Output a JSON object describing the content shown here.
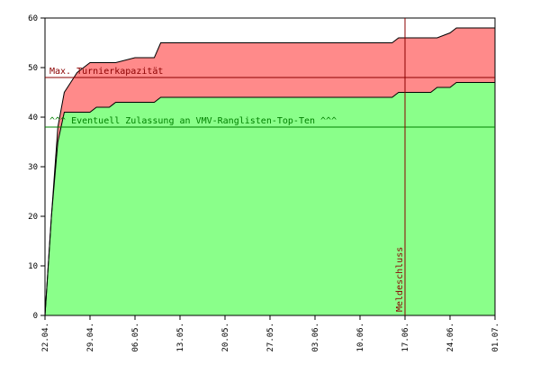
{
  "chart_data": {
    "type": "area",
    "title": "",
    "xlabel": "",
    "ylabel": "",
    "ylim": [
      0,
      60
    ],
    "grid": false,
    "x_ticks": [
      "22.04.",
      "29.04.",
      "06.05.",
      "13.05.",
      "20.05.",
      "27.05.",
      "03.06.",
      "10.06.",
      "17.06.",
      "24.06.",
      "01.07."
    ],
    "y_ticks": [
      0,
      10,
      20,
      30,
      40,
      50,
      60
    ],
    "x": [
      0,
      1,
      2,
      3,
      4,
      5,
      7,
      8,
      10,
      11,
      14,
      17,
      18,
      54,
      55,
      60,
      61,
      63,
      64,
      70
    ],
    "series": [
      {
        "values": [
          0,
          20,
          35,
          41,
          41,
          41,
          41,
          42,
          42,
          43,
          43,
          43,
          44,
          44,
          45,
          45,
          46,
          46,
          47,
          47
        ],
        "color": "#8aff8a"
      },
      {
        "values": [
          0,
          20,
          38,
          45,
          47,
          49,
          51,
          51,
          51,
          51,
          52,
          52,
          55,
          55,
          56,
          56,
          56,
          57,
          58,
          58
        ],
        "color": "#ff8a8a"
      }
    ],
    "annotations": [
      {
        "label": "Max. Turnierkapazität",
        "type": "hline",
        "y": 48,
        "color": "#8b0000"
      },
      {
        "label": "^^^ Eventuell Zulassung an VMV-Ranglisten-Top-Ten ^^^",
        "type": "hline",
        "y": 38,
        "color": "#008000"
      },
      {
        "label": "Meldeschluss",
        "type": "vline",
        "x_label": "17.06.",
        "color": "#8b0000"
      }
    ]
  }
}
